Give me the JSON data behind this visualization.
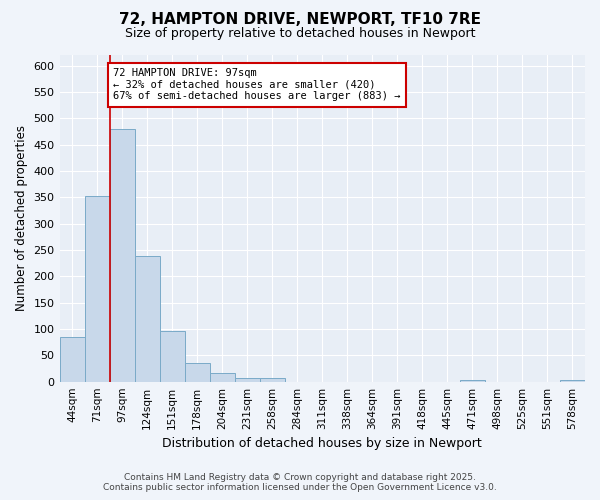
{
  "title_line1": "72, HAMPTON DRIVE, NEWPORT, TF10 7RE",
  "title_line2": "Size of property relative to detached houses in Newport",
  "xlabel": "Distribution of detached houses by size in Newport",
  "ylabel": "Number of detached properties",
  "categories": [
    "44sqm",
    "71sqm",
    "97sqm",
    "124sqm",
    "151sqm",
    "178sqm",
    "204sqm",
    "231sqm",
    "258sqm",
    "284sqm",
    "311sqm",
    "338sqm",
    "364sqm",
    "391sqm",
    "418sqm",
    "445sqm",
    "471sqm",
    "498sqm",
    "525sqm",
    "551sqm",
    "578sqm"
  ],
  "values": [
    85,
    352,
    480,
    238,
    97,
    35,
    17,
    7,
    7,
    0,
    0,
    0,
    0,
    0,
    0,
    0,
    3,
    0,
    0,
    0,
    3
  ],
  "bar_color": "#c8d8ea",
  "bar_edge_color": "#7aaac8",
  "red_line_index": 2,
  "annotation_text_line1": "72 HAMPTON DRIVE: 97sqm",
  "annotation_text_line2": "← 32% of detached houses are smaller (420)",
  "annotation_text_line3": "67% of semi-detached houses are larger (883) →",
  "annotation_box_color": "#ffffff",
  "annotation_box_edge_color": "#cc0000",
  "red_line_color": "#cc0000",
  "background_color": "#f0f4fa",
  "plot_bg_color": "#e8eef6",
  "grid_color": "#ffffff",
  "footer_line1": "Contains HM Land Registry data © Crown copyright and database right 2025.",
  "footer_line2": "Contains public sector information licensed under the Open Government Licence v3.0.",
  "ylim": [
    0,
    620
  ],
  "yticks": [
    0,
    50,
    100,
    150,
    200,
    250,
    300,
    350,
    400,
    450,
    500,
    550,
    600
  ]
}
